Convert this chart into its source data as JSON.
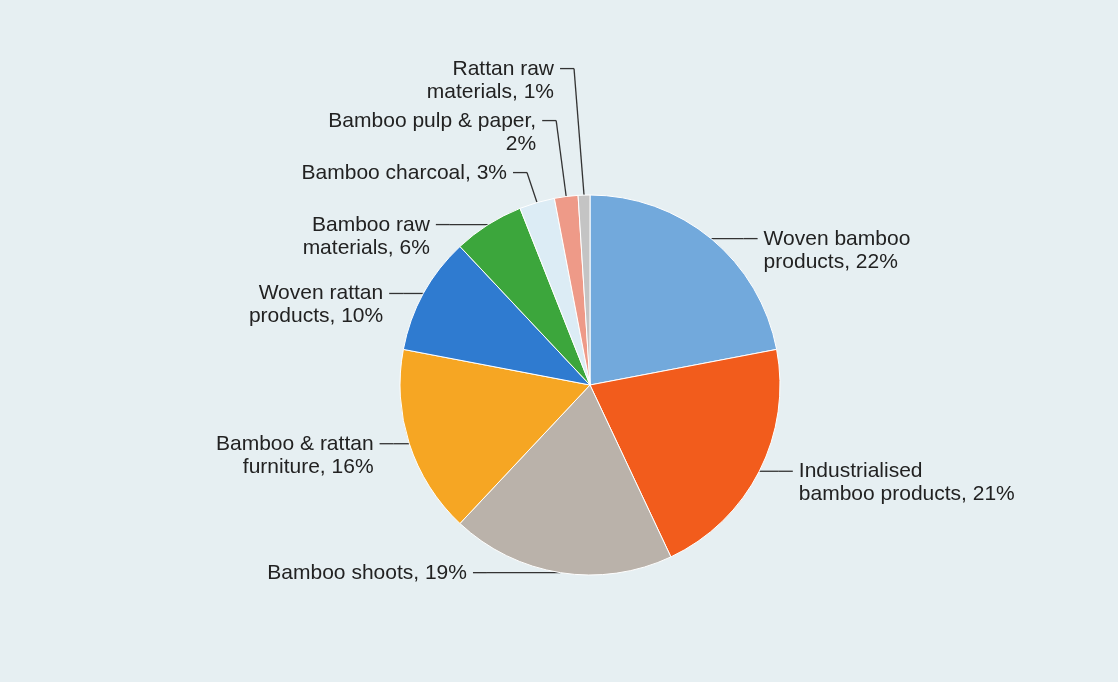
{
  "chart_data": {
    "type": "pie",
    "categories": [
      "Woven bamboo products, 22%",
      "Industrialised bamboo products, 21%",
      "Bamboo shoots, 19%",
      "Bamboo & rattan furniture, 16%",
      "Woven rattan products, 10%",
      "Bamboo raw materials, 6%",
      "Bamboo charcoal, 3%",
      "Bamboo pulp & paper, 2%",
      "Rattan raw materials, 1%"
    ],
    "values": [
      22,
      21,
      19,
      16,
      10,
      6,
      3,
      2,
      1
    ],
    "colors": [
      "#72a9dc",
      "#f25c1c",
      "#bab2aa",
      "#f6a623",
      "#2f7bd0",
      "#3ca63c",
      "#dcecf5",
      "#ee9a88",
      "#c4c4c4"
    ]
  }
}
